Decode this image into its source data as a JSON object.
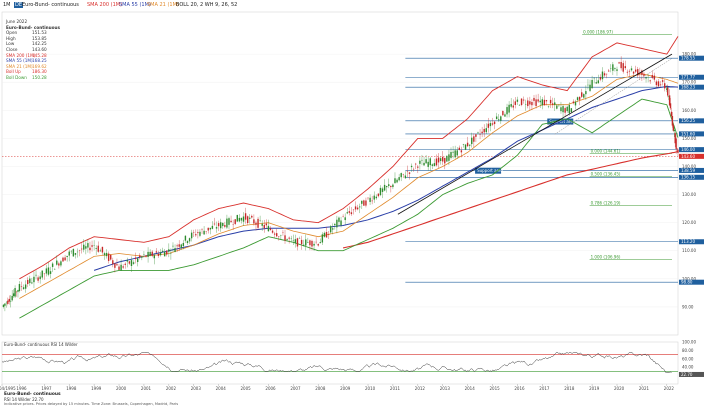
{
  "header": {
    "timeframe": "1M",
    "symbol_badge": "DE",
    "symbol": "Euro-Bund- continuous",
    "ind_sma200": "SMA 200 (1M)",
    "ind_sma55": "SMA 55 (1M)",
    "ind_sma21": "SMA 21 (1M)",
    "ind_boll": "BOLL 20, 2  WH 9, 26, 52"
  },
  "ohlc_panel": {
    "date": "June 2022",
    "name": "Euro-Bund- continuous",
    "rows": [
      {
        "label": "Open",
        "value": "151.53",
        "color": "#333333"
      },
      {
        "label": "High",
        "value": "153.85",
        "color": "#333333"
      },
      {
        "label": "Low",
        "value": "142.25",
        "color": "#333333"
      },
      {
        "label": "Close",
        "value": "143.60",
        "color": "#333333"
      },
      {
        "label": "SMA 200 (1M)",
        "value": "145.28",
        "color": "#d8302c"
      },
      {
        "label": "SMA 55 (1M)",
        "value": "168.25",
        "color": "#2a3fa8"
      },
      {
        "label": "SMA 21 (1M)",
        "value": "169.62",
        "color": "#e08a2c"
      },
      {
        "label": "Boll Up",
        "value": "186.30",
        "color": "#d8302c"
      },
      {
        "label": "Boll Down",
        "value": "150.28",
        "color": "#3c9a33"
      }
    ]
  },
  "annotations": {
    "support_area_1": "Support area",
    "support_area_2": "Support area",
    "fib_0": "0.000 (186.97)",
    "fib_100": "0.000 (144.61)",
    "fib_1": "0.500 (136.45)",
    "fib_2": "0.786 (126.19)",
    "fib_3": "1.000 (106.96)"
  },
  "price_scale": {
    "ticks": [
      "180.00",
      "170.00",
      "160.00",
      "150.00",
      "140.00",
      "130.00",
      "120.00",
      "110.00",
      "100.00",
      "90.00"
    ],
    "tags": [
      {
        "text": "178.55",
        "color": "#1f5f9e"
      },
      {
        "text": "171.77",
        "color": "#1f5f9e"
      },
      {
        "text": "168.23",
        "color": "#1f5f9e"
      },
      {
        "text": "156.25",
        "color": "#1f5f9e"
      },
      {
        "text": "151.60",
        "color": "#1f5f9e"
      },
      {
        "text": "146.00",
        "color": "#1f5f9e"
      },
      {
        "text": "143.60",
        "color": "#d8302c"
      },
      {
        "text": "138.59",
        "color": "#1f5f9e"
      },
      {
        "text": "136.15",
        "color": "#1f5f9e"
      },
      {
        "text": "113.20",
        "color": "#1f5f9e"
      },
      {
        "text": "98.80",
        "color": "#1f5f9e"
      }
    ]
  },
  "rsi_panel": {
    "title": "Euro-Bund- continuous  RSI 14 Wilder",
    "bottom_name": "Euro-Bund- continuous",
    "bottom_value": "RSI 14 Wilder     22.70",
    "ticks": [
      "100.00",
      "80.00",
      "60.00",
      "40.00",
      "20.00"
    ],
    "current": "22.70"
  },
  "x_axis": {
    "labels": [
      "04/1995",
      "1996",
      "1997",
      "1998",
      "1999",
      "2000",
      "2001",
      "2002",
      "2003",
      "2004",
      "2005",
      "2006",
      "2007",
      "2008",
      "2009",
      "2010",
      "2011",
      "2012",
      "2013",
      "2014",
      "2015",
      "2016",
      "2017",
      "2018",
      "2019",
      "2020",
      "2021",
      "2022"
    ]
  },
  "footnote": {
    "line1": "Indicative prices. Prices delayed by 15 minutes.  Time Zone: Brussels, Copenhagen, Madrid, Paris"
  },
  "colors": {
    "price": "#2e7d32",
    "sma200": "#d8302c",
    "sma55": "#2a3fa8",
    "sma21": "#e08a2c",
    "boll_up": "#d8302c",
    "boll_down": "#3c9a33",
    "support": "#1f5f9e"
  },
  "chart_data": {
    "type": "line",
    "title": "Euro-Bund- continuous",
    "xlabel": "",
    "ylabel": "",
    "ylim": [
      80,
      195
    ],
    "x": [
      1995.3,
      1996,
      1997,
      1998,
      1999,
      2000,
      2001,
      2002,
      2003,
      2004,
      2005,
      2006,
      2007,
      2008,
      2009,
      2010,
      2011,
      2012,
      2013,
      2014,
      2015,
      2016,
      2017,
      2018,
      2019,
      2020,
      2021,
      2022,
      2022.45
    ],
    "series": [
      {
        "name": "Close",
        "values": [
          90,
          97,
          102,
          109,
          112,
          104,
          108,
          110,
          116,
          119,
          122,
          118,
          113,
          113,
          122,
          128,
          134,
          141,
          142,
          148,
          156,
          163,
          163,
          160,
          170,
          176,
          173,
          168,
          143.6
        ]
      },
      {
        "name": "SMA 200 (1M)",
        "values": [
          null,
          null,
          null,
          null,
          null,
          null,
          null,
          null,
          null,
          null,
          null,
          null,
          null,
          null,
          111,
          113,
          116,
          119,
          122,
          125,
          128,
          131,
          134,
          137,
          139,
          141,
          143,
          144.5,
          145.28
        ]
      },
      {
        "name": "SMA 55 (1M)",
        "values": [
          null,
          null,
          null,
          null,
          103,
          106,
          108,
          110,
          112,
          115,
          117,
          118,
          118,
          118,
          119,
          121,
          124,
          128,
          133,
          138,
          143,
          149,
          153,
          157,
          161,
          164,
          167,
          168.5,
          168.25
        ]
      },
      {
        "name": "SMA 21 (1M)",
        "values": [
          null,
          93,
          98,
          103,
          108,
          109,
          108,
          109,
          112,
          116,
          119,
          120,
          117,
          115,
          117,
          123,
          129,
          136,
          140,
          145,
          152,
          158,
          162,
          162,
          165,
          171,
          173,
          171,
          169.62
        ]
      },
      {
        "name": "Boll Up",
        "values": [
          null,
          100,
          105,
          111,
          115,
          114,
          113,
          115,
          121,
          125,
          127,
          125,
          121,
          120,
          125,
          132,
          140,
          150,
          150,
          157,
          167,
          172,
          169,
          167,
          179,
          184,
          182,
          180,
          186.3
        ]
      },
      {
        "name": "Boll Down",
        "values": [
          null,
          86,
          91,
          96,
          101,
          103,
          103,
          103,
          105,
          108,
          111,
          115,
          113,
          110,
          110,
          114,
          118,
          123,
          130,
          134,
          137,
          144,
          155,
          157,
          152,
          158,
          164,
          162,
          150.28
        ]
      }
    ],
    "horizontal_levels": [
      178.55,
      171.77,
      168.23,
      156.25,
      151.6,
      146.0,
      138.59,
      136.15,
      113.2,
      98.8
    ],
    "rsi": {
      "ylim": [
        0,
        100
      ],
      "current": 22.7,
      "overbought": 70,
      "oversold": 30
    }
  }
}
